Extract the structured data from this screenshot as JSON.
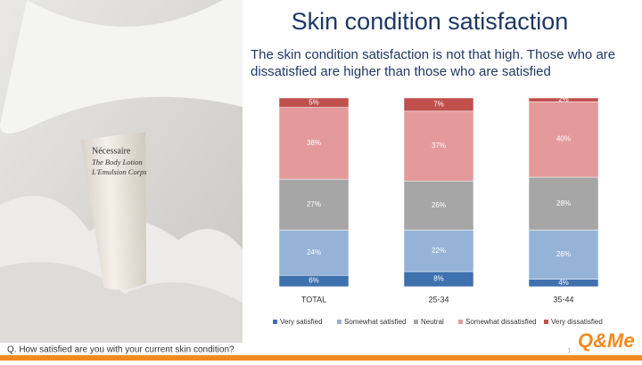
{
  "chart_data": {
    "type": "stacked-bar",
    "title": "Skin condition satisfaction",
    "subtitle": [
      "The skin condition satisfaction is not that high. Those who are",
      "dissatisfied are higher than those who are satisfied"
    ],
    "categories": [
      "TOTAL",
      "25-34",
      "35-44"
    ],
    "series": [
      {
        "name": "Very satisfied",
        "color": "#3f71ae",
        "values": [
          6,
          8,
          4
        ],
        "value_labels": [
          "6%",
          "8%",
          "4%"
        ]
      },
      {
        "name": "Somewhat satisfied",
        "color": "#95b3d7",
        "values": [
          24,
          22,
          26
        ],
        "value_labels": [
          "24%",
          "22%",
          "26%"
        ]
      },
      {
        "name": "Neutral",
        "color": "#a6a6a6",
        "values": [
          27,
          26,
          28
        ],
        "value_labels": [
          "27%",
          "26%",
          "28%"
        ]
      },
      {
        "name": "Somewhat dissatisfied",
        "color": "#e49a9b",
        "values": [
          38,
          37,
          40
        ],
        "value_labels": [
          "38%",
          "37%",
          "40%"
        ]
      },
      {
        "name": "Very dissatisfied",
        "color": "#c0504d",
        "values": [
          5,
          7,
          2
        ],
        "value_labels": [
          "5%",
          "7%",
          "2%"
        ]
      }
    ],
    "legend": "bottom"
  },
  "photo_text": [
    "Nécessaire",
    "The Body Lotion",
    "L'Emulsion Corps"
  ],
  "footer": {
    "question": "Q. How satisfied are you with your current skin condition?",
    "page": "1",
    "logo": "Q&Me"
  }
}
